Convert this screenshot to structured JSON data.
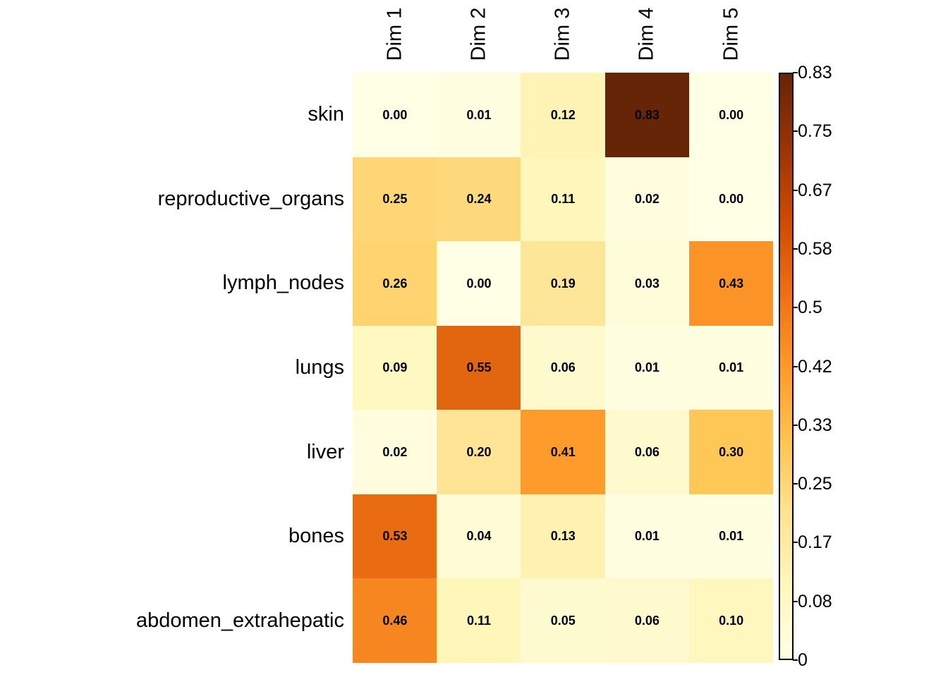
{
  "chart_data": {
    "type": "heatmap",
    "title": "",
    "columns": [
      "Dim 1",
      "Dim 2",
      "Dim 3",
      "Dim 4",
      "Dim 5"
    ],
    "rows": [
      "skin",
      "reproductive_organs",
      "lymph_nodes",
      "lungs",
      "liver",
      "bones",
      "abdomen_extrahepatic"
    ],
    "values": [
      [
        0.0,
        0.01,
        0.12,
        0.83,
        0.0
      ],
      [
        0.25,
        0.24,
        0.11,
        0.02,
        0.0
      ],
      [
        0.26,
        0.0,
        0.19,
        0.03,
        0.43
      ],
      [
        0.09,
        0.55,
        0.06,
        0.01,
        0.01
      ],
      [
        0.02,
        0.2,
        0.41,
        0.06,
        0.3
      ],
      [
        0.53,
        0.04,
        0.13,
        0.01,
        0.01
      ],
      [
        0.46,
        0.11,
        0.05,
        0.06,
        0.1
      ]
    ],
    "value_decimals": 2,
    "colormap": {
      "name": "YlOrBr",
      "stops": [
        "#FFFFE5",
        "#FFF7BC",
        "#FEE391",
        "#FEC44F",
        "#FE9929",
        "#EC7014",
        "#CC4C02",
        "#993404",
        "#662506"
      ],
      "domain": [
        0,
        0.83
      ]
    },
    "colorbar_labels": [
      "0.83",
      "0.75",
      "0.67",
      "0.58",
      "0.5",
      "0.42",
      "0.33",
      "0.25",
      "0.17",
      "0.08",
      "0"
    ],
    "legend_position": "right",
    "grid": false
  },
  "colors": {
    "background": "#FFFFFF",
    "text": "#000000",
    "colorbar_border": "#000000"
  }
}
